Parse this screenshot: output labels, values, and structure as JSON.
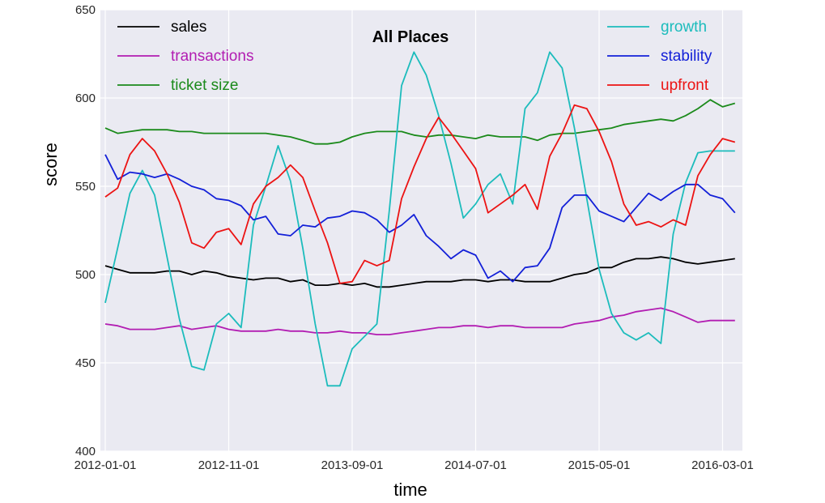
{
  "chart_data": {
    "type": "line",
    "title": "All Places",
    "xlabel": "time",
    "ylabel": "score",
    "ylim": [
      400,
      650
    ],
    "yticks": [
      "400",
      "450",
      "500",
      "550",
      "600",
      "650"
    ],
    "xticks": [
      "2012-01-01",
      "2012-11-01",
      "2013-09-01",
      "2014-07-01",
      "2015-05-01",
      "2016-03-01"
    ],
    "x": [
      "2012-01",
      "2012-02",
      "2012-03",
      "2012-04",
      "2012-05",
      "2012-06",
      "2012-07",
      "2012-08",
      "2012-09",
      "2012-10",
      "2012-11",
      "2012-12",
      "2013-01",
      "2013-02",
      "2013-03",
      "2013-04",
      "2013-05",
      "2013-06",
      "2013-07",
      "2013-08",
      "2013-09",
      "2013-10",
      "2013-11",
      "2013-12",
      "2014-01",
      "2014-02",
      "2014-03",
      "2014-04",
      "2014-05",
      "2014-06",
      "2014-07",
      "2014-08",
      "2014-09",
      "2014-10",
      "2014-11",
      "2014-12",
      "2015-01",
      "2015-02",
      "2015-03",
      "2015-04",
      "2015-05",
      "2015-06",
      "2015-07",
      "2015-08",
      "2015-09",
      "2015-10",
      "2015-11",
      "2015-12",
      "2016-01",
      "2016-02",
      "2016-03",
      "2016-04"
    ],
    "background": "#eaeaf2",
    "grid": true,
    "legend_placement": [
      "top-left",
      "top-right"
    ],
    "series": [
      {
        "name": "sales",
        "color": "#000000",
        "legend_group": "left",
        "values": [
          505,
          503,
          501,
          501,
          501,
          502,
          502,
          500,
          502,
          501,
          499,
          498,
          497,
          498,
          498,
          496,
          497,
          494,
          494,
          495,
          494,
          495,
          493,
          493,
          494,
          495,
          496,
          496,
          496,
          497,
          497,
          496,
          497,
          497,
          496,
          496,
          496,
          498,
          500,
          501,
          504,
          504,
          507,
          509,
          509,
          510,
          509,
          507,
          506,
          507,
          508,
          509
        ]
      },
      {
        "name": "transactions",
        "color": "#b21db2",
        "legend_group": "left",
        "values": [
          472,
          471,
          469,
          469,
          469,
          470,
          471,
          469,
          470,
          471,
          469,
          468,
          468,
          468,
          469,
          468,
          468,
          467,
          467,
          468,
          467,
          467,
          466,
          466,
          467,
          468,
          469,
          470,
          470,
          471,
          471,
          470,
          471,
          471,
          470,
          470,
          470,
          470,
          472,
          473,
          474,
          476,
          477,
          479,
          480,
          481,
          479,
          476,
          473,
          474,
          474,
          474
        ]
      },
      {
        "name": "ticket size",
        "color": "#1b8a1b",
        "legend_group": "left",
        "values": [
          583,
          580,
          581,
          582,
          582,
          582,
          581,
          581,
          580,
          580,
          580,
          580,
          580,
          580,
          579,
          578,
          576,
          574,
          574,
          575,
          578,
          580,
          581,
          581,
          581,
          579,
          578,
          579,
          579,
          578,
          577,
          579,
          578,
          578,
          578,
          576,
          579,
          580,
          580,
          581,
          582,
          583,
          585,
          586,
          587,
          588,
          587,
          590,
          594,
          599,
          595,
          597
        ]
      },
      {
        "name": "growth",
        "color": "#1cbcbc",
        "legend_group": "right",
        "values": [
          484,
          515,
          546,
          559,
          545,
          510,
          475,
          448,
          446,
          472,
          478,
          470,
          528,
          550,
          573,
          553,
          515,
          472,
          437,
          437,
          458,
          465,
          472,
          536,
          607,
          626,
          613,
          590,
          563,
          532,
          540,
          551,
          557,
          540,
          594,
          603,
          626,
          617,
          583,
          543,
          503,
          478,
          467,
          463,
          467,
          461,
          523,
          552,
          569,
          570,
          570,
          570
        ]
      },
      {
        "name": "stability",
        "color": "#1320d8",
        "legend_group": "right",
        "values": [
          568,
          554,
          558,
          557,
          555,
          557,
          554,
          550,
          548,
          543,
          542,
          539,
          531,
          533,
          523,
          522,
          528,
          527,
          532,
          533,
          536,
          535,
          531,
          524,
          528,
          534,
          522,
          516,
          509,
          514,
          511,
          498,
          502,
          496,
          504,
          505,
          515,
          538,
          545,
          545,
          536,
          533,
          530,
          538,
          546,
          542,
          547,
          551,
          551,
          545,
          543,
          535
        ]
      },
      {
        "name": "upfront",
        "color": "#ec1313",
        "legend_group": "right",
        "values": [
          544,
          549,
          568,
          577,
          570,
          557,
          541,
          518,
          515,
          524,
          526,
          517,
          540,
          550,
          555,
          562,
          555,
          536,
          518,
          495,
          496,
          508,
          505,
          508,
          543,
          561,
          577,
          589,
          580,
          570,
          560,
          535,
          540,
          545,
          551,
          537,
          567,
          580,
          596,
          594,
          581,
          564,
          540,
          528,
          530,
          527,
          531,
          528,
          556,
          568,
          577,
          575
        ]
      }
    ]
  }
}
